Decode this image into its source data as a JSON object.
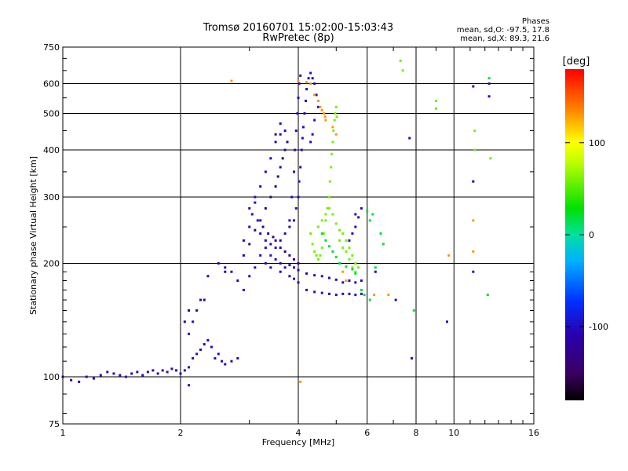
{
  "header": {
    "title_line1": "Tromsø 20160701 15:02:00-15:03:43",
    "title_line2": "RwPretec (8p)",
    "stats_heading": "Phases",
    "stats_line1": "mean, sd,O: -97.5, 17.8",
    "stats_line2": "mean, sd,X:  89.3, 21.6"
  },
  "colorbar": {
    "unit_label": "[deg]",
    "ticks": [
      "100",
      "0",
      "-100"
    ],
    "tick_values": [
      100,
      0,
      -100
    ],
    "range": [
      -180,
      180
    ]
  },
  "chart_data": {
    "type": "scatter",
    "xlabel": "Frequency [MHz]",
    "ylabel": "Stationary phase Virtual Height [km]",
    "x_scale": "log2",
    "y_scale": "log",
    "xlim": [
      1,
      16
    ],
    "ylim": [
      75,
      750
    ],
    "x_ticks": [
      1,
      2,
      4,
      6,
      8,
      10,
      16
    ],
    "x_tick_labels": [
      "1",
      "2",
      "4",
      "6",
      "8",
      "10",
      "16"
    ],
    "y_ticks": [
      75,
      100,
      200,
      300,
      400,
      500,
      600,
      750
    ],
    "y_tick_labels": [
      "75",
      "100",
      "200",
      "300",
      "400",
      "500",
      "600",
      "750"
    ],
    "grid": true,
    "series": [
      {
        "color_phase": -100,
        "points": [
          [
            1.0,
            100
          ],
          [
            1.05,
            98
          ],
          [
            1.1,
            97
          ],
          [
            1.15,
            100
          ],
          [
            1.2,
            99
          ],
          [
            1.25,
            101
          ],
          [
            1.3,
            103
          ],
          [
            1.35,
            102
          ],
          [
            1.4,
            101
          ],
          [
            1.45,
            100
          ],
          [
            1.5,
            102
          ],
          [
            1.55,
            103
          ],
          [
            1.6,
            101
          ],
          [
            1.65,
            103
          ],
          [
            1.7,
            104
          ],
          [
            1.75,
            102
          ],
          [
            1.8,
            104
          ],
          [
            1.85,
            103
          ],
          [
            1.9,
            105
          ],
          [
            1.95,
            104
          ],
          [
            2.0,
            102
          ],
          [
            2.05,
            104
          ],
          [
            2.1,
            106
          ],
          [
            2.15,
            112
          ],
          [
            2.2,
            115
          ],
          [
            2.25,
            118
          ],
          [
            2.3,
            122
          ],
          [
            2.35,
            125
          ],
          [
            2.4,
            120
          ],
          [
            2.45,
            112
          ],
          [
            2.5,
            115
          ],
          [
            2.55,
            110
          ],
          [
            2.6,
            108
          ],
          [
            2.7,
            110
          ],
          [
            2.8,
            112
          ],
          [
            2.1,
            130
          ],
          [
            2.15,
            140
          ],
          [
            2.2,
            150
          ],
          [
            2.25,
            160
          ],
          [
            2.35,
            185
          ],
          [
            2.5,
            200
          ],
          [
            2.6,
            195
          ],
          [
            2.7,
            190
          ],
          [
            2.8,
            180
          ],
          [
            2.9,
            170
          ],
          [
            3.0,
            185
          ],
          [
            3.1,
            195
          ],
          [
            3.2,
            210
          ],
          [
            3.3,
            220
          ],
          [
            3.4,
            210
          ],
          [
            3.5,
            205
          ],
          [
            3.6,
            200
          ],
          [
            3.7,
            195
          ],
          [
            3.8,
            198
          ],
          [
            3.9,
            195
          ],
          [
            4.0,
            192
          ],
          [
            4.2,
            188
          ],
          [
            4.4,
            186
          ],
          [
            4.6,
            185
          ],
          [
            4.8,
            183
          ],
          [
            5.0,
            181
          ],
          [
            5.2,
            178
          ],
          [
            5.4,
            180
          ],
          [
            5.6,
            178
          ],
          [
            5.8,
            180
          ],
          [
            3.3,
            200
          ],
          [
            3.4,
            195
          ],
          [
            3.6,
            190
          ],
          [
            3.8,
            185
          ],
          [
            3.9,
            182
          ],
          [
            4.0,
            178
          ],
          [
            4.2,
            170
          ],
          [
            4.4,
            168
          ],
          [
            4.6,
            167
          ],
          [
            4.8,
            166
          ],
          [
            5.0,
            165
          ],
          [
            5.2,
            166
          ],
          [
            5.4,
            166
          ],
          [
            5.6,
            165
          ],
          [
            5.8,
            166
          ],
          [
            2.9,
            230
          ],
          [
            3.0,
            250
          ],
          [
            3.05,
            270
          ],
          [
            3.1,
            290
          ],
          [
            3.15,
            260
          ],
          [
            3.2,
            240
          ],
          [
            3.3,
            230
          ],
          [
            3.4,
            225
          ],
          [
            3.5,
            220
          ],
          [
            3.6,
            230
          ],
          [
            3.7,
            240
          ],
          [
            3.8,
            250
          ],
          [
            3.9,
            260
          ],
          [
            3.95,
            280
          ],
          [
            4.0,
            300
          ],
          [
            4.02,
            330
          ],
          [
            4.05,
            360
          ],
          [
            4.08,
            400
          ],
          [
            4.1,
            430
          ],
          [
            4.12,
            460
          ],
          [
            4.15,
            500
          ],
          [
            4.18,
            540
          ],
          [
            4.2,
            580
          ],
          [
            4.25,
            620
          ],
          [
            4.3,
            640
          ],
          [
            4.35,
            620
          ],
          [
            4.4,
            600
          ],
          [
            4.45,
            560
          ],
          [
            4.5,
            520
          ],
          [
            4.4,
            480
          ],
          [
            4.35,
            440
          ],
          [
            4.3,
            420
          ],
          [
            3.8,
            260
          ],
          [
            3.85,
            300
          ],
          [
            3.9,
            350
          ],
          [
            3.92,
            400
          ],
          [
            3.95,
            450
          ],
          [
            3.98,
            500
          ],
          [
            4.0,
            550
          ],
          [
            4.02,
            600
          ],
          [
            4.05,
            630
          ],
          [
            3.5,
            420
          ],
          [
            3.6,
            440
          ],
          [
            3.7,
            450
          ],
          [
            3.6,
            470
          ],
          [
            3.5,
            440
          ],
          [
            3.4,
            380
          ],
          [
            3.3,
            350
          ],
          [
            3.2,
            320
          ],
          [
            3.1,
            300
          ],
          [
            3.0,
            280
          ],
          [
            5.4,
            230
          ],
          [
            5.5,
            240
          ],
          [
            5.6,
            250
          ],
          [
            5.7,
            265
          ],
          [
            5.8,
            280
          ],
          [
            5.6,
            270
          ],
          [
            6.3,
            190
          ],
          [
            7.1,
            160
          ],
          [
            7.8,
            112
          ],
          [
            7.7,
            430
          ],
          [
            9.6,
            140
          ],
          [
            11.2,
            190
          ],
          [
            11.2,
            590
          ],
          [
            12.3,
            555
          ],
          [
            12.3,
            600
          ],
          [
            2.1,
            95
          ]
        ]
      },
      {
        "color_phase": -130,
        "points": [
          [
            2.05,
            140
          ],
          [
            2.1,
            150
          ],
          [
            2.3,
            160
          ],
          [
            2.6,
            190
          ],
          [
            2.9,
            210
          ],
          [
            3.0,
            225
          ],
          [
            3.1,
            245
          ],
          [
            3.2,
            260
          ],
          [
            3.3,
            280
          ],
          [
            3.4,
            300
          ],
          [
            3.5,
            320
          ],
          [
            3.55,
            340
          ],
          [
            3.6,
            360
          ],
          [
            3.65,
            380
          ],
          [
            3.7,
            400
          ],
          [
            3.75,
            420
          ],
          [
            3.5,
            230
          ],
          [
            3.6,
            220
          ],
          [
            3.7,
            215
          ],
          [
            3.8,
            210
          ],
          [
            3.9,
            205
          ],
          [
            4.0,
            200
          ],
          [
            3.25,
            250
          ],
          [
            3.35,
            240
          ],
          [
            3.45,
            235
          ],
          [
            11.2,
            330
          ]
        ]
      },
      {
        "color_phase": 60,
        "points": [
          [
            4.3,
            240
          ],
          [
            4.35,
            225
          ],
          [
            4.4,
            215
          ],
          [
            4.45,
            210
          ],
          [
            4.5,
            205
          ],
          [
            4.55,
            210
          ],
          [
            4.6,
            220
          ],
          [
            4.65,
            240
          ],
          [
            4.7,
            260
          ],
          [
            4.75,
            280
          ],
          [
            4.8,
            300
          ],
          [
            4.82,
            330
          ],
          [
            4.85,
            360
          ],
          [
            4.87,
            390
          ],
          [
            4.9,
            420
          ],
          [
            4.92,
            450
          ],
          [
            4.95,
            480
          ],
          [
            4.97,
            500
          ],
          [
            5.0,
            520
          ],
          [
            5.02,
            490
          ],
          [
            4.5,
            250
          ],
          [
            4.6,
            260
          ],
          [
            4.7,
            270
          ],
          [
            4.8,
            280
          ],
          [
            4.9,
            270
          ],
          [
            5.0,
            255
          ],
          [
            5.1,
            245
          ],
          [
            5.2,
            240
          ],
          [
            5.3,
            230
          ],
          [
            5.4,
            220
          ],
          [
            5.5,
            210
          ],
          [
            5.6,
            200
          ],
          [
            5.7,
            195
          ],
          [
            5.1,
            230
          ],
          [
            5.2,
            220
          ],
          [
            5.3,
            215
          ],
          [
            5.4,
            205
          ],
          [
            5.5,
            195
          ],
          [
            5.6,
            190
          ],
          [
            7.3,
            690
          ],
          [
            7.4,
            650
          ],
          [
            9.0,
            540
          ],
          [
            9.0,
            515
          ],
          [
            11.3,
            450
          ],
          [
            11.3,
            400
          ],
          [
            12.4,
            380
          ]
        ]
      },
      {
        "color_phase": 130,
        "points": [
          [
            2.7,
            610
          ],
          [
            4.0,
            610
          ],
          [
            4.2,
            605
          ],
          [
            4.3,
            600
          ],
          [
            4.4,
            560
          ],
          [
            4.5,
            540
          ],
          [
            4.55,
            520
          ],
          [
            4.6,
            510
          ],
          [
            4.65,
            500
          ],
          [
            4.68,
            490
          ],
          [
            4.7,
            480
          ],
          [
            4.9,
            460
          ],
          [
            5.0,
            440
          ],
          [
            5.2,
            190
          ],
          [
            5.3,
            180
          ],
          [
            6.25,
            165
          ],
          [
            6.8,
            165
          ],
          [
            11.2,
            215
          ],
          [
            9.7,
            210
          ],
          [
            11.2,
            260
          ],
          [
            4.05,
            97
          ]
        ]
      },
      {
        "color_phase": 20,
        "points": [
          [
            4.6,
            240
          ],
          [
            4.7,
            230
          ],
          [
            4.8,
            222
          ],
          [
            4.9,
            215
          ],
          [
            5.0,
            208
          ],
          [
            5.1,
            200
          ],
          [
            5.3,
            196
          ],
          [
            5.5,
            193
          ],
          [
            5.6,
            188
          ],
          [
            5.8,
            170
          ],
          [
            5.9,
            165
          ],
          [
            6.0,
            275
          ],
          [
            6.2,
            270
          ],
          [
            6.1,
            260
          ],
          [
            6.1,
            160
          ],
          [
            6.3,
            195
          ],
          [
            7.9,
            150
          ],
          [
            12.3,
            620
          ],
          [
            12.2,
            165
          ],
          [
            6.5,
            240
          ],
          [
            6.6,
            225
          ]
        ]
      }
    ]
  }
}
